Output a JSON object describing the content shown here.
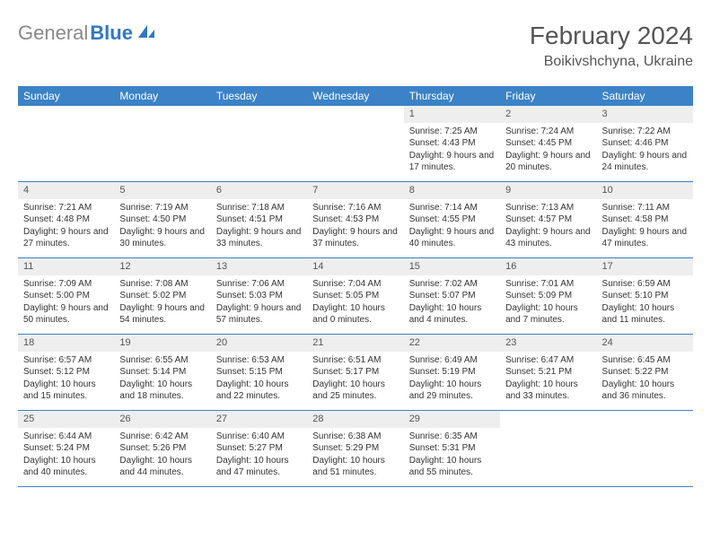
{
  "logo": {
    "gray": "General",
    "blue": "Blue"
  },
  "title": "February 2024",
  "location": "Boikivshchyna, Ukraine",
  "colors": {
    "header_bg": "#3b82c7",
    "header_text": "#ffffff",
    "daynum_bg": "#eeeeee",
    "border": "#3b82c7",
    "logo_gray": "#888888",
    "logo_blue": "#2f78c4"
  },
  "day_names": [
    "Sunday",
    "Monday",
    "Tuesday",
    "Wednesday",
    "Thursday",
    "Friday",
    "Saturday"
  ],
  "weeks": [
    [
      null,
      null,
      null,
      null,
      {
        "n": "1",
        "sr": "Sunrise: 7:25 AM",
        "ss": "Sunset: 4:43 PM",
        "dl": "Daylight: 9 hours and 17 minutes."
      },
      {
        "n": "2",
        "sr": "Sunrise: 7:24 AM",
        "ss": "Sunset: 4:45 PM",
        "dl": "Daylight: 9 hours and 20 minutes."
      },
      {
        "n": "3",
        "sr": "Sunrise: 7:22 AM",
        "ss": "Sunset: 4:46 PM",
        "dl": "Daylight: 9 hours and 24 minutes."
      }
    ],
    [
      {
        "n": "4",
        "sr": "Sunrise: 7:21 AM",
        "ss": "Sunset: 4:48 PM",
        "dl": "Daylight: 9 hours and 27 minutes."
      },
      {
        "n": "5",
        "sr": "Sunrise: 7:19 AM",
        "ss": "Sunset: 4:50 PM",
        "dl": "Daylight: 9 hours and 30 minutes."
      },
      {
        "n": "6",
        "sr": "Sunrise: 7:18 AM",
        "ss": "Sunset: 4:51 PM",
        "dl": "Daylight: 9 hours and 33 minutes."
      },
      {
        "n": "7",
        "sr": "Sunrise: 7:16 AM",
        "ss": "Sunset: 4:53 PM",
        "dl": "Daylight: 9 hours and 37 minutes."
      },
      {
        "n": "8",
        "sr": "Sunrise: 7:14 AM",
        "ss": "Sunset: 4:55 PM",
        "dl": "Daylight: 9 hours and 40 minutes."
      },
      {
        "n": "9",
        "sr": "Sunrise: 7:13 AM",
        "ss": "Sunset: 4:57 PM",
        "dl": "Daylight: 9 hours and 43 minutes."
      },
      {
        "n": "10",
        "sr": "Sunrise: 7:11 AM",
        "ss": "Sunset: 4:58 PM",
        "dl": "Daylight: 9 hours and 47 minutes."
      }
    ],
    [
      {
        "n": "11",
        "sr": "Sunrise: 7:09 AM",
        "ss": "Sunset: 5:00 PM",
        "dl": "Daylight: 9 hours and 50 minutes."
      },
      {
        "n": "12",
        "sr": "Sunrise: 7:08 AM",
        "ss": "Sunset: 5:02 PM",
        "dl": "Daylight: 9 hours and 54 minutes."
      },
      {
        "n": "13",
        "sr": "Sunrise: 7:06 AM",
        "ss": "Sunset: 5:03 PM",
        "dl": "Daylight: 9 hours and 57 minutes."
      },
      {
        "n": "14",
        "sr": "Sunrise: 7:04 AM",
        "ss": "Sunset: 5:05 PM",
        "dl": "Daylight: 10 hours and 0 minutes."
      },
      {
        "n": "15",
        "sr": "Sunrise: 7:02 AM",
        "ss": "Sunset: 5:07 PM",
        "dl": "Daylight: 10 hours and 4 minutes."
      },
      {
        "n": "16",
        "sr": "Sunrise: 7:01 AM",
        "ss": "Sunset: 5:09 PM",
        "dl": "Daylight: 10 hours and 7 minutes."
      },
      {
        "n": "17",
        "sr": "Sunrise: 6:59 AM",
        "ss": "Sunset: 5:10 PM",
        "dl": "Daylight: 10 hours and 11 minutes."
      }
    ],
    [
      {
        "n": "18",
        "sr": "Sunrise: 6:57 AM",
        "ss": "Sunset: 5:12 PM",
        "dl": "Daylight: 10 hours and 15 minutes."
      },
      {
        "n": "19",
        "sr": "Sunrise: 6:55 AM",
        "ss": "Sunset: 5:14 PM",
        "dl": "Daylight: 10 hours and 18 minutes."
      },
      {
        "n": "20",
        "sr": "Sunrise: 6:53 AM",
        "ss": "Sunset: 5:15 PM",
        "dl": "Daylight: 10 hours and 22 minutes."
      },
      {
        "n": "21",
        "sr": "Sunrise: 6:51 AM",
        "ss": "Sunset: 5:17 PM",
        "dl": "Daylight: 10 hours and 25 minutes."
      },
      {
        "n": "22",
        "sr": "Sunrise: 6:49 AM",
        "ss": "Sunset: 5:19 PM",
        "dl": "Daylight: 10 hours and 29 minutes."
      },
      {
        "n": "23",
        "sr": "Sunrise: 6:47 AM",
        "ss": "Sunset: 5:21 PM",
        "dl": "Daylight: 10 hours and 33 minutes."
      },
      {
        "n": "24",
        "sr": "Sunrise: 6:45 AM",
        "ss": "Sunset: 5:22 PM",
        "dl": "Daylight: 10 hours and 36 minutes."
      }
    ],
    [
      {
        "n": "25",
        "sr": "Sunrise: 6:44 AM",
        "ss": "Sunset: 5:24 PM",
        "dl": "Daylight: 10 hours and 40 minutes."
      },
      {
        "n": "26",
        "sr": "Sunrise: 6:42 AM",
        "ss": "Sunset: 5:26 PM",
        "dl": "Daylight: 10 hours and 44 minutes."
      },
      {
        "n": "27",
        "sr": "Sunrise: 6:40 AM",
        "ss": "Sunset: 5:27 PM",
        "dl": "Daylight: 10 hours and 47 minutes."
      },
      {
        "n": "28",
        "sr": "Sunrise: 6:38 AM",
        "ss": "Sunset: 5:29 PM",
        "dl": "Daylight: 10 hours and 51 minutes."
      },
      {
        "n": "29",
        "sr": "Sunrise: 6:35 AM",
        "ss": "Sunset: 5:31 PM",
        "dl": "Daylight: 10 hours and 55 minutes."
      },
      null,
      null
    ]
  ]
}
